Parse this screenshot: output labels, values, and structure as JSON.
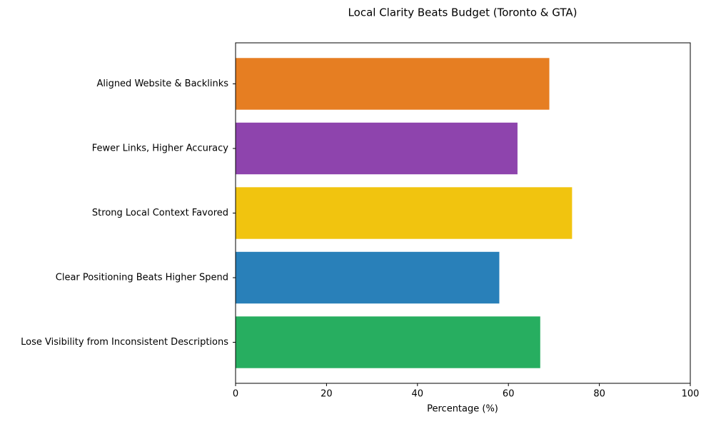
{
  "chart_data": {
    "type": "barh",
    "title": "Local Clarity Beats Budget (Toronto & GTA)",
    "xlabel": "Percentage (%)",
    "categories": [
      "Lose Visibility from Inconsistent Descriptions",
      "Clear Positioning Beats Higher Spend",
      "Strong Local Context Favored",
      "Fewer Links, Higher Accuracy",
      "Aligned Website & Backlinks"
    ],
    "values": [
      67,
      58,
      74,
      62,
      69
    ],
    "colors": [
      "#27ae60",
      "#2980b9",
      "#f1c40f",
      "#8e44ad",
      "#e67e22"
    ],
    "xlim": [
      0,
      100
    ],
    "xticks": [
      0,
      20,
      40,
      60,
      80,
      100
    ]
  }
}
